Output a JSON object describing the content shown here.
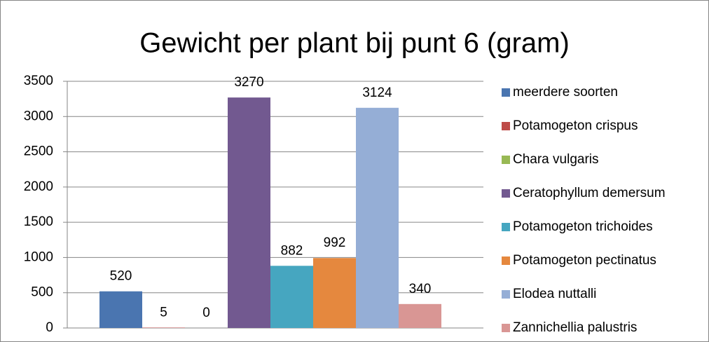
{
  "chart_data": {
    "type": "bar",
    "title": "Gewicht per plant bij punt 6 (gram)",
    "series": [
      {
        "name": "meerdere soorten",
        "color": "#4a75b0",
        "values": [
          520
        ]
      },
      {
        "name": "Potamogeton crispus",
        "color": "#be4b48",
        "values": [
          5
        ]
      },
      {
        "name": "Chara vulgaris",
        "color": "#98b954",
        "values": [
          0
        ]
      },
      {
        "name": "Ceratophyllum demersum",
        "color": "#725990",
        "values": [
          3270
        ]
      },
      {
        "name": "Potamogeton trichoides",
        "color": "#46a6c0",
        "values": [
          882
        ]
      },
      {
        "name": "Potamogeton pectinatus",
        "color": "#e5883e",
        "values": [
          992
        ]
      },
      {
        "name": "Elodea nuttalli",
        "color": "#95aed6",
        "values": [
          3124
        ]
      },
      {
        "name": "Zannichellia palustris",
        "color": "#d99694",
        "values": [
          340
        ]
      }
    ],
    "ylim": [
      0,
      3500
    ],
    "yticks": [
      0,
      500,
      1000,
      1500,
      2000,
      2500,
      3000,
      3500
    ],
    "grid": true,
    "legend": "right"
  }
}
